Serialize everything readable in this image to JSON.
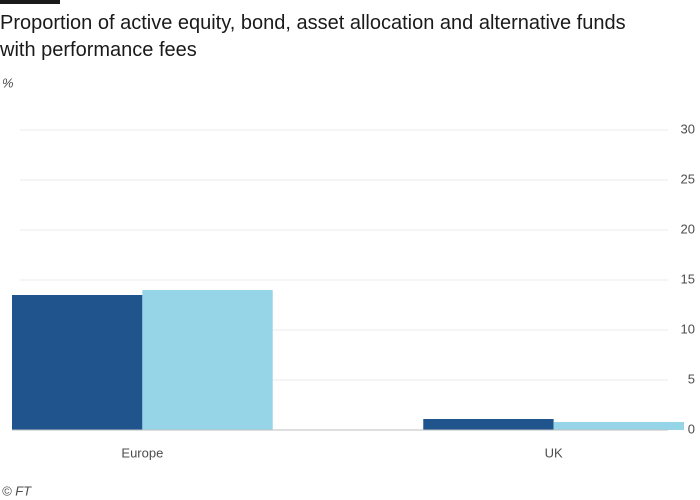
{
  "chart_data": {
    "type": "bar",
    "title": "Proportion of active equity, bond, asset allocation and alternative funds with performance fees",
    "y_label": "%",
    "source": "© FT",
    "categories": [
      "Europe",
      "UK"
    ],
    "series": [
      {
        "color": "#1f558c",
        "values": [
          13.5,
          1.1
        ]
      },
      {
        "color": "#96d5e8",
        "values": [
          14.0,
          0.8
        ]
      }
    ],
    "ylim": [
      0,
      30
    ],
    "yticks": [
      0,
      5,
      10,
      15,
      20,
      25,
      30
    ],
    "grid": true
  }
}
